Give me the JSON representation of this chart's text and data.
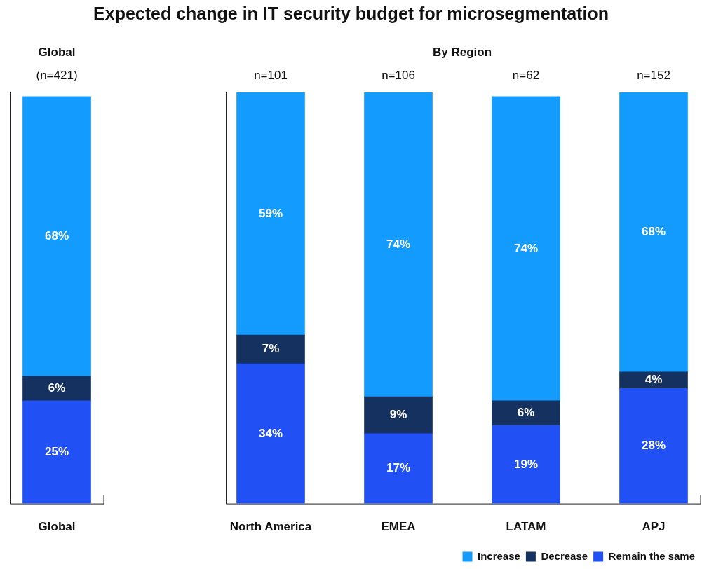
{
  "chart_data": {
    "type": "bar",
    "title": "Expected change in IT security budget for microsegmentation",
    "categories": [
      "Global",
      "North America",
      "EMEA",
      "LATAM",
      "APJ"
    ],
    "stacked": true,
    "ylim": [
      0,
      100
    ],
    "tick_labels": "x",
    "legend": "bottom right",
    "series": [
      {
        "name": "Remain the same",
        "color": "#2150f5",
        "values": [
          25,
          34,
          17,
          19,
          28
        ],
        "value_labels": [
          "25%",
          "34%",
          "17%",
          "19%",
          "28%"
        ]
      },
      {
        "name": "Decrease",
        "color": "#14315f",
        "values": [
          6,
          7,
          9,
          6,
          4
        ],
        "value_labels": [
          "6%",
          "7%",
          "9%",
          "6%",
          "4%"
        ]
      },
      {
        "name": "Increase",
        "color": "#139bfe",
        "values": [
          68,
          59,
          74,
          74,
          68
        ],
        "value_labels": [
          "68%",
          "59%",
          "74%",
          "74%",
          "68%"
        ]
      }
    ],
    "annotations": [
      "Global",
      "By Region",
      "(n=421)",
      "n=101",
      "n=106",
      "n=62",
      "n=152"
    ]
  }
}
